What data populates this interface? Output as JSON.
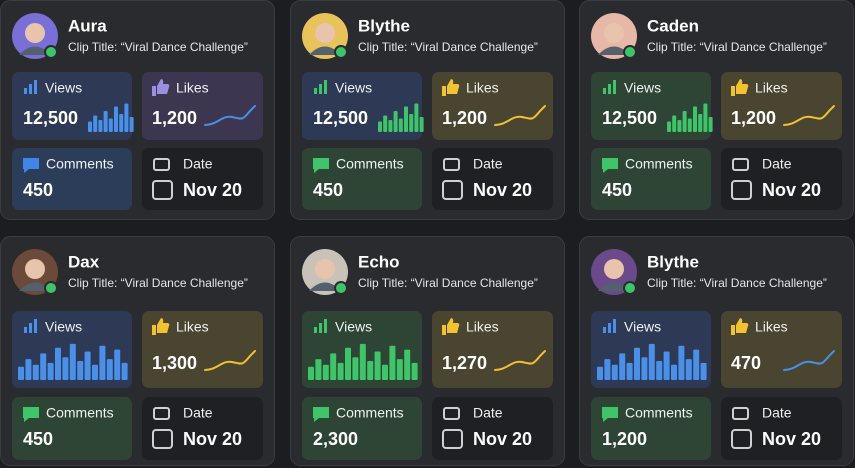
{
  "labels": {
    "views": "Views",
    "likes": "Likes",
    "comments": "Comments",
    "date": "Date"
  },
  "cards": [
    {
      "name": "Aura",
      "clip_title": "Clip Title: “Viral Dance Challenge”",
      "views": "12,500",
      "likes": "1,200",
      "comments": "450",
      "date": "Nov 20",
      "theme": {
        "views_tile": "#2e3a55",
        "likes_tile": "#3d3650",
        "comments_tile": "#2c3d5a",
        "bars": "#4a8fe8",
        "line": "#4a8fe8",
        "thumb": "#9b8fe0",
        "bubble": "#3f86e8",
        "avatar": "#7a6fd6"
      }
    },
    {
      "name": "Blythe",
      "clip_title": "Clip Title: “Viral Dance Challenge”",
      "views": "12,500",
      "likes": "1,200",
      "comments": "450",
      "date": "Nov 20",
      "theme": {
        "views_tile": "#2e3a55",
        "likes_tile": "#4a4530",
        "comments_tile": "#2e4535",
        "bars": "#3fc46a",
        "line": "#f2c230",
        "thumb": "#f2c230",
        "bubble": "#3fc46a",
        "avatar": "#e8c25a"
      }
    },
    {
      "name": "Caden",
      "clip_title": "Clip Title: “Viral Dance Challenge”",
      "views": "12,500",
      "likes": "1,200",
      "comments": "450",
      "date": "Nov 20",
      "theme": {
        "views_tile": "#2e4535",
        "likes_tile": "#4a4530",
        "comments_tile": "#2e4535",
        "bars": "#3fc46a",
        "line": "#f2c230",
        "thumb": "#f2c230",
        "bubble": "#3fc46a",
        "avatar": "#e7b7a8"
      }
    },
    {
      "name": "Dax",
      "clip_title": "Clip Title: “Viral Dance Challenge”",
      "views": "12,500",
      "likes": "1,300",
      "comments": "450",
      "date": "Nov 20",
      "theme": {
        "views_tile": "#2e3a55",
        "likes_tile": "#4a4530",
        "comments_tile": "#2e4535",
        "bars": "#4a8fe8",
        "line": "#f2c230",
        "thumb": "#f2c230",
        "bubble": "#3fc46a",
        "avatar": "#6b4a3a"
      }
    },
    {
      "name": "Echo",
      "clip_title": "Clip Title: “Viral Dance Challenge”",
      "views": "12,500",
      "likes": "1,270",
      "comments": "2,300",
      "date": "Nov 20",
      "theme": {
        "views_tile": "#2e4535",
        "likes_tile": "#4a4530",
        "comments_tile": "#2e4535",
        "bars": "#3fc46a",
        "line": "#f2c230",
        "thumb": "#f2c230",
        "bubble": "#3fc46a",
        "avatar": "#c9c2b8"
      }
    },
    {
      "name": "Blythe",
      "clip_title": "Clip Title: “Viral Dance Challenge”",
      "views": "12,500",
      "likes": "470",
      "comments": "1,200",
      "date": "Nov 20",
      "theme": {
        "views_tile": "#2e3a55",
        "likes_tile": "#4a4530",
        "comments_tile": "#2e4535",
        "bars": "#4a8fe8",
        "line": "#4a8fe8",
        "thumb": "#f2c230",
        "bubble": "#3fc46a",
        "avatar": "#6a4a8a"
      }
    }
  ]
}
